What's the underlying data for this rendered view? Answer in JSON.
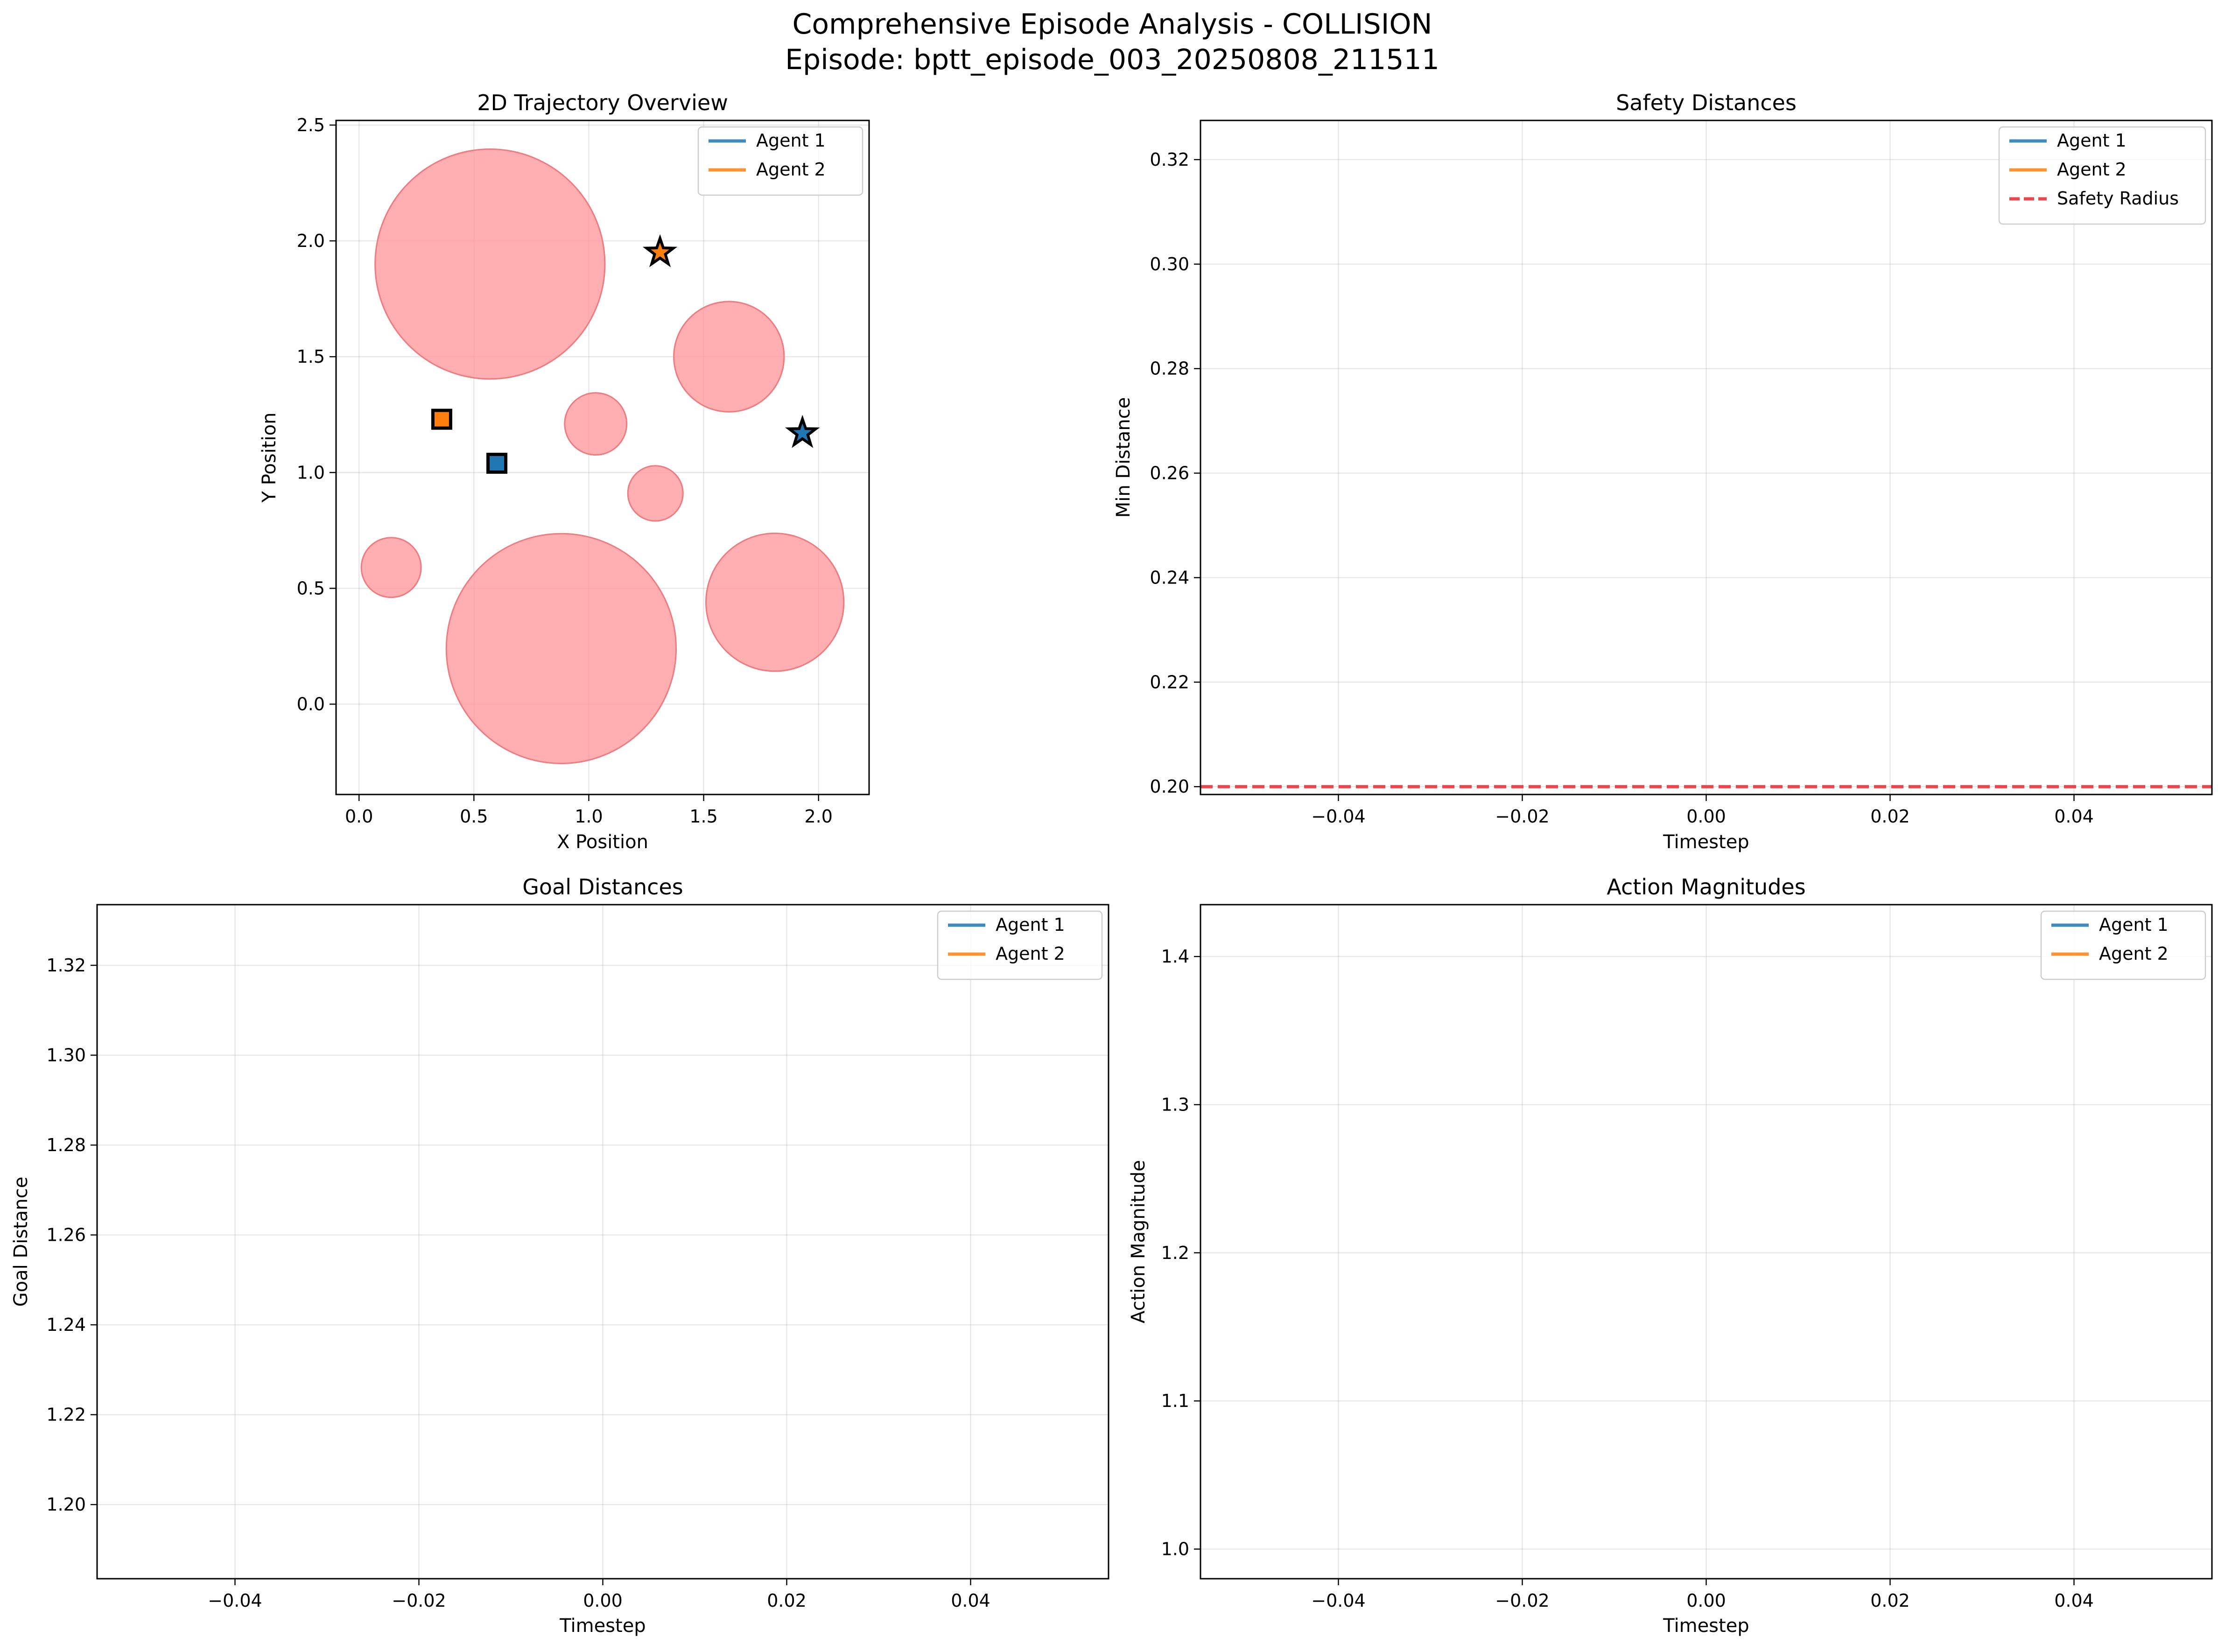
{
  "figure": {
    "suptitle_line1": "Comprehensive Episode Analysis - COLLISION",
    "suptitle_line2": "Episode: bptt_episode_003_20250808_211511"
  },
  "colors": {
    "agent1": "#1f77b4",
    "agent2": "#ff7f0e",
    "obstacle": "#ff9a9e",
    "safety": "#e8343b",
    "background": "#ffffff"
  },
  "chart_data": [
    {
      "id": "trajectory",
      "type": "scatter",
      "title": "2D Trajectory Overview",
      "xlabel": "X Position",
      "ylabel": "Y Position",
      "xlim": [
        -0.1,
        2.22
      ],
      "ylim": [
        -0.39,
        2.52
      ],
      "xticks": [
        0.0,
        0.5,
        1.0,
        1.5,
        2.0
      ],
      "yticks": [
        0.0,
        0.5,
        1.0,
        1.5,
        2.0,
        2.5
      ],
      "grid": true,
      "legend": {
        "placement": "top-right",
        "entries": [
          "Agent 1",
          "Agent 2"
        ]
      },
      "series": [
        {
          "name": "Agent 1",
          "color": "#1f77b4",
          "start": [
            0.6,
            1.04
          ],
          "goal": [
            1.93,
            1.17
          ]
        },
        {
          "name": "Agent 2",
          "color": "#ff7f0e",
          "start": [
            0.36,
            1.23
          ],
          "goal": [
            1.31,
            1.95
          ]
        }
      ],
      "obstacles": [
        {
          "x": 0.57,
          "y": 1.9,
          "r": 0.5
        },
        {
          "x": 0.88,
          "y": 0.24,
          "r": 0.5
        },
        {
          "x": 1.61,
          "y": 1.5,
          "r": 0.24
        },
        {
          "x": 1.81,
          "y": 0.44,
          "r": 0.3
        },
        {
          "x": 1.03,
          "y": 1.21,
          "r": 0.135
        },
        {
          "x": 1.29,
          "y": 0.91,
          "r": 0.12
        },
        {
          "x": 0.14,
          "y": 0.59,
          "r": 0.13
        }
      ]
    },
    {
      "id": "safety",
      "type": "line",
      "title": "Safety Distances",
      "xlabel": "Timestep",
      "ylabel": "Min Distance",
      "xlim": [
        -0.055,
        0.055
      ],
      "ylim": [
        0.1985,
        0.3275
      ],
      "xticks": [
        -0.04,
        -0.02,
        0.0,
        0.02,
        0.04
      ],
      "yticks": [
        0.2,
        0.22,
        0.24,
        0.26,
        0.28,
        0.3,
        0.32
      ],
      "grid": true,
      "legend": {
        "placement": "top-right",
        "entries": [
          "Agent 1",
          "Agent 2",
          "Safety Radius"
        ]
      },
      "series": [
        {
          "name": "Agent 1",
          "color": "#1f77b4",
          "values": []
        },
        {
          "name": "Agent 2",
          "color": "#ff7f0e",
          "values": []
        }
      ],
      "reference_line": {
        "name": "Safety Radius",
        "y": 0.2,
        "style": "dashed",
        "color": "#e8343b"
      }
    },
    {
      "id": "goal",
      "type": "line",
      "title": "Goal Distances",
      "xlabel": "Timestep",
      "ylabel": "Goal Distance",
      "xlim": [
        -0.055,
        0.055
      ],
      "ylim": [
        1.1835,
        1.3335
      ],
      "xticks": [
        -0.04,
        -0.02,
        0.0,
        0.02,
        0.04
      ],
      "yticks": [
        1.2,
        1.22,
        1.24,
        1.26,
        1.28,
        1.3,
        1.32
      ],
      "grid": true,
      "legend": {
        "placement": "top-right",
        "entries": [
          "Agent 1",
          "Agent 2"
        ]
      },
      "series": [
        {
          "name": "Agent 1",
          "color": "#1f77b4",
          "values": []
        },
        {
          "name": "Agent 2",
          "color": "#ff7f0e",
          "values": []
        }
      ]
    },
    {
      "id": "action",
      "type": "line",
      "title": "Action Magnitudes",
      "xlabel": "Timestep",
      "ylabel": "Action Magnitude",
      "xlim": [
        -0.055,
        0.055
      ],
      "ylim": [
        0.98,
        1.435
      ],
      "xticks": [
        -0.04,
        -0.02,
        0.0,
        0.02,
        0.04
      ],
      "yticks": [
        1.0,
        1.1,
        1.2,
        1.3,
        1.4
      ],
      "grid": true,
      "legend": {
        "placement": "top-right",
        "entries": [
          "Agent 1",
          "Agent 2"
        ]
      },
      "series": [
        {
          "name": "Agent 1",
          "color": "#1f77b4",
          "values": []
        },
        {
          "name": "Agent 2",
          "color": "#ff7f0e",
          "values": []
        }
      ]
    }
  ]
}
